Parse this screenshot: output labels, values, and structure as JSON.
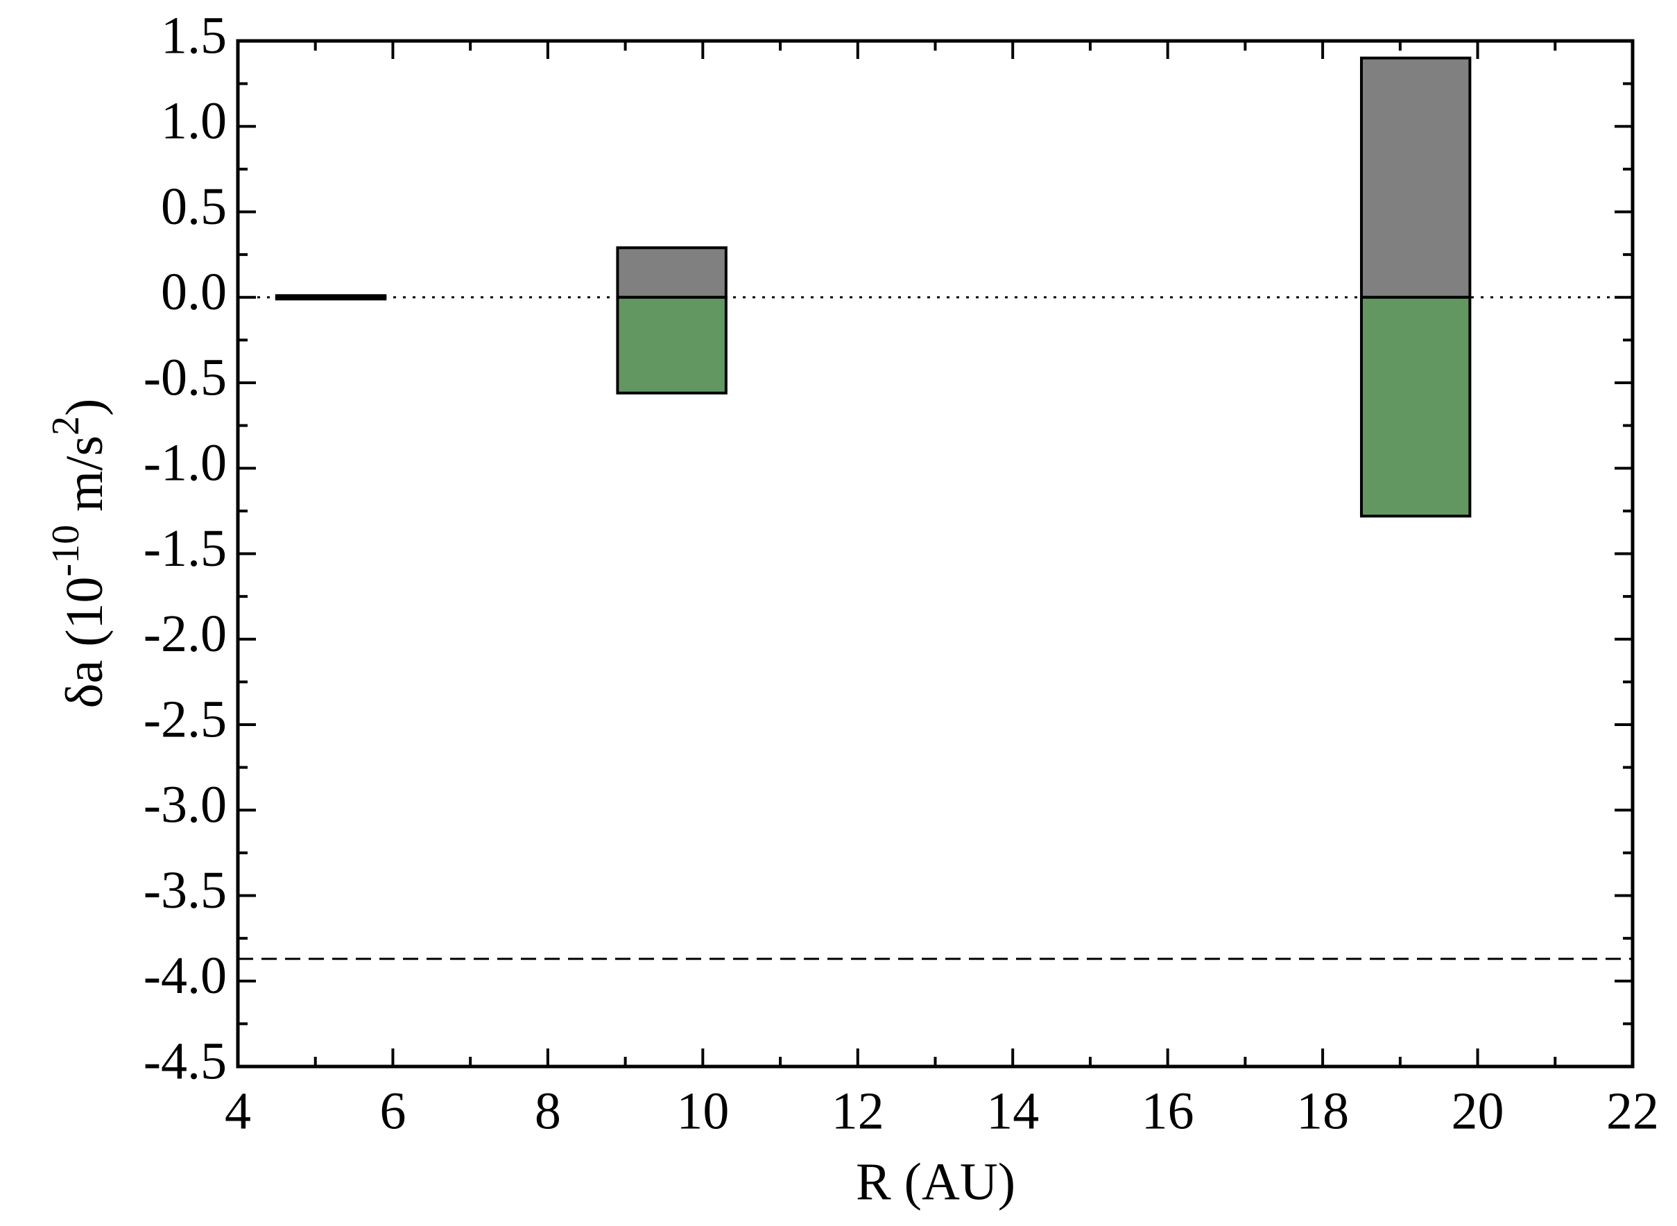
{
  "chart_data": {
    "type": "range-bar",
    "xlabel": "R (AU)",
    "ylabel": {
      "base": "δa (10",
      "exp": "-10",
      "unit": " m/s",
      "unit_exp": "2",
      "close": ")"
    },
    "x_ranges": [
      [
        4.5,
        5.9
      ],
      [
        8.9,
        10.3
      ],
      [
        18.5,
        19.9
      ]
    ],
    "series": [
      {
        "color": "#808080",
        "values": [
          0.01,
          0.29,
          1.4
        ]
      },
      {
        "color": "#639762",
        "values": [
          -0.01,
          -0.56,
          -1.28
        ]
      }
    ],
    "hlines": [
      {
        "value": 0,
        "style": "dotted"
      },
      {
        "value": -3.87,
        "style": "dashed"
      }
    ],
    "xlim": [
      4,
      22
    ],
    "xticks": [
      4,
      6,
      8,
      10,
      12,
      14,
      16,
      18,
      20,
      22
    ],
    "ylim": [
      -4.5,
      1.5
    ],
    "yticks": [
      1.5,
      {
        "value": 1,
        "label": "1.0"
      },
      0.5,
      {
        "value": 0,
        "label": "0.0"
      },
      -0.5,
      {
        "value": -1,
        "label": "-1.0"
      },
      -1.5,
      {
        "value": -2,
        "label": "-2.0"
      },
      -2.5,
      {
        "value": -3,
        "label": "-3.0"
      },
      -3.5,
      {
        "value": -4,
        "label": "-4.0"
      },
      -4.5
    ]
  }
}
